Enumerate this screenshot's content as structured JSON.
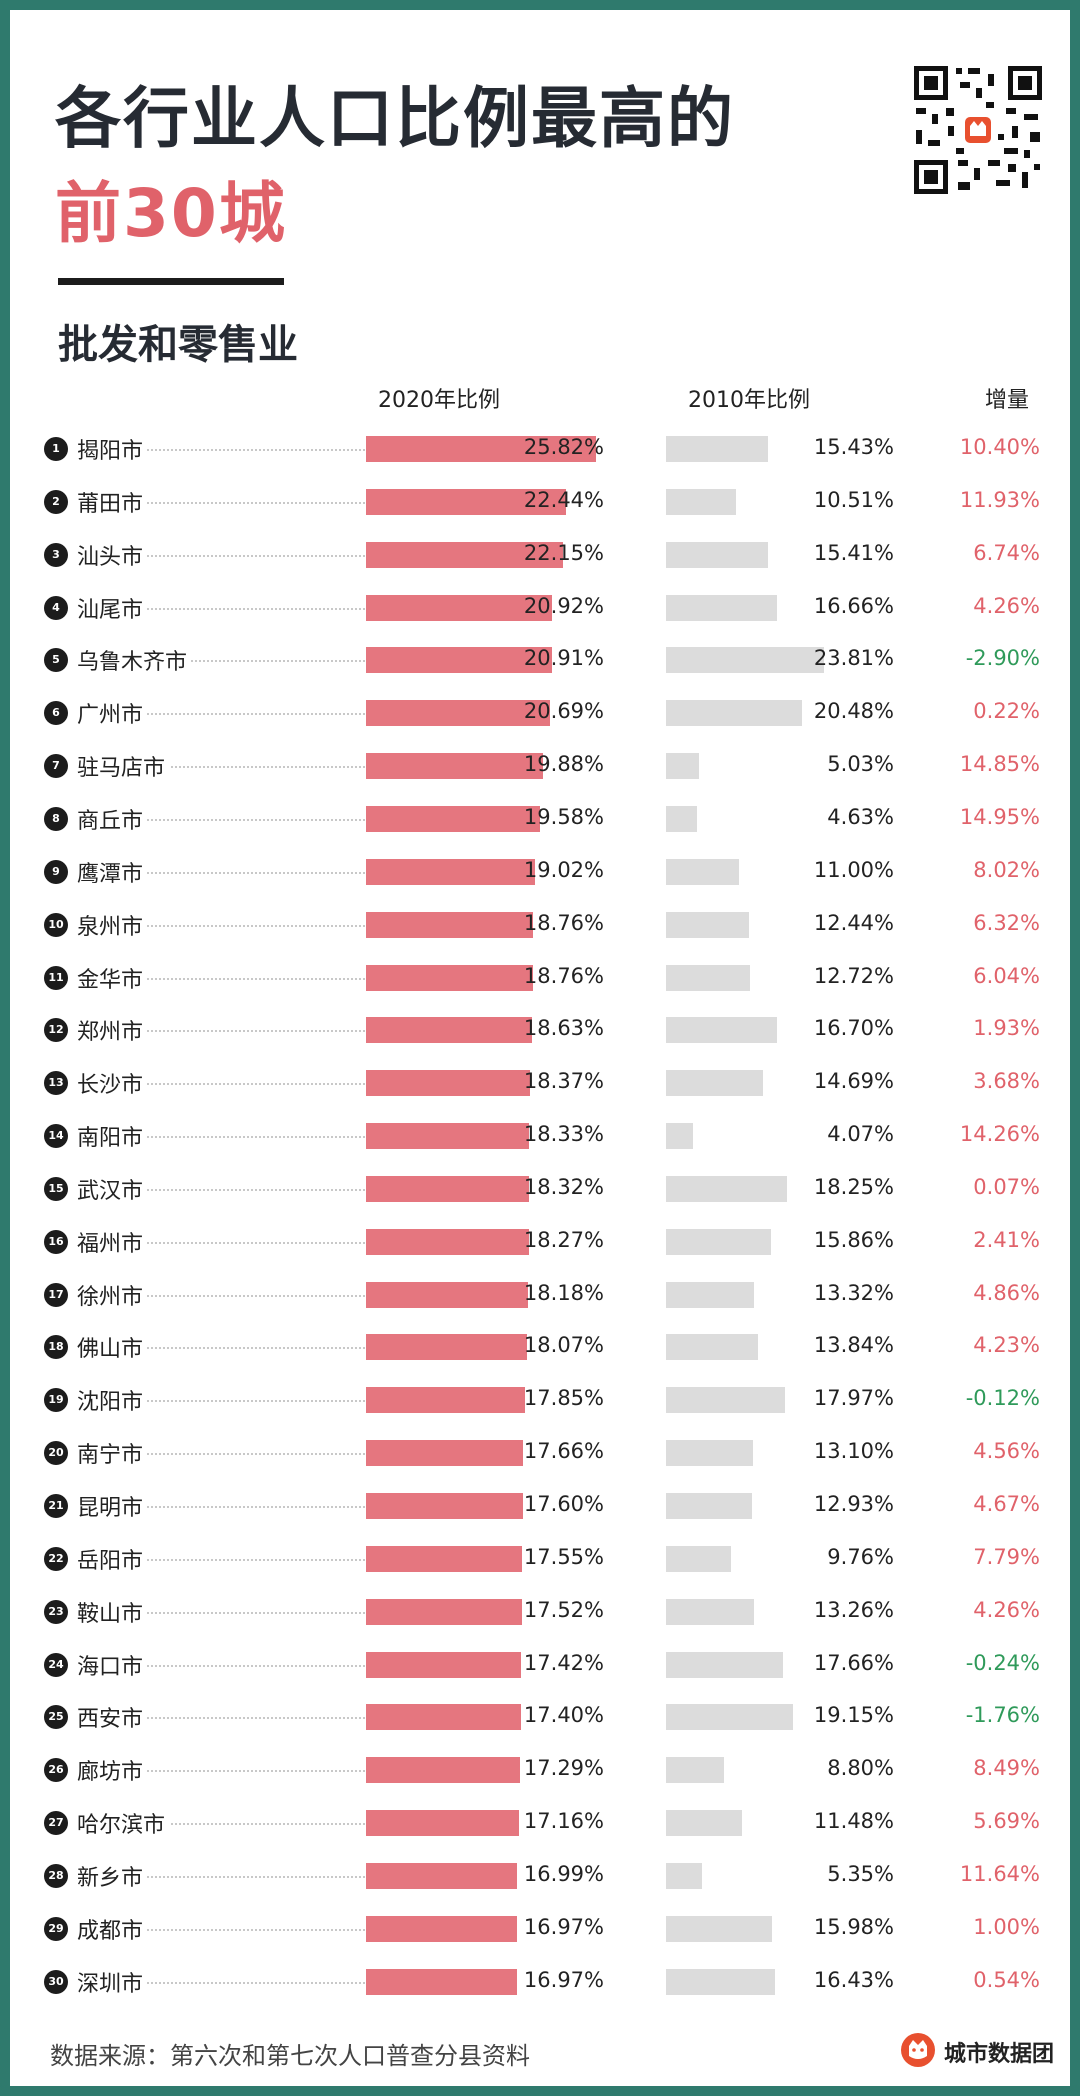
{
  "title_line1": "各行业人口比例最高的",
  "title_line2": "前30城",
  "subtitle": "批发和零售业",
  "chart_data": {
    "type": "bar",
    "title": "各行业人口比例最高的前30城 - 批发和零售业",
    "columns": {
      "pct2020": "2020年比例",
      "pct2010": "2010年比例",
      "increase": "增量"
    },
    "xlim_2020": [
      0,
      25.82
    ],
    "xlim_2010": [
      0,
      23.81
    ],
    "rows": [
      {
        "rank": "1",
        "city": "揭阳市",
        "v2020": 25.82,
        "v2010": 15.43,
        "inc": 10.4,
        "v2020_label": "25.82%",
        "v2010_label": "15.43%",
        "inc_label": "10.40%"
      },
      {
        "rank": "2",
        "city": "莆田市",
        "v2020": 22.44,
        "v2010": 10.51,
        "inc": 11.93,
        "v2020_label": "22.44%",
        "v2010_label": "10.51%",
        "inc_label": "11.93%"
      },
      {
        "rank": "3",
        "city": "汕头市",
        "v2020": 22.15,
        "v2010": 15.41,
        "inc": 6.74,
        "v2020_label": "22.15%",
        "v2010_label": "15.41%",
        "inc_label": "6.74%"
      },
      {
        "rank": "4",
        "city": "汕尾市",
        "v2020": 20.92,
        "v2010": 16.66,
        "inc": 4.26,
        "v2020_label": "20.92%",
        "v2010_label": "16.66%",
        "inc_label": "4.26%"
      },
      {
        "rank": "5",
        "city": "乌鲁木齐市",
        "v2020": 20.91,
        "v2010": 23.81,
        "inc": -2.9,
        "v2020_label": "20.91%",
        "v2010_label": "23.81%",
        "inc_label": "-2.90%"
      },
      {
        "rank": "6",
        "city": "广州市",
        "v2020": 20.69,
        "v2010": 20.48,
        "inc": 0.22,
        "v2020_label": "20.69%",
        "v2010_label": "20.48%",
        "inc_label": "0.22%"
      },
      {
        "rank": "7",
        "city": "驻马店市",
        "v2020": 19.88,
        "v2010": 5.03,
        "inc": 14.85,
        "v2020_label": "19.88%",
        "v2010_label": "5.03%",
        "inc_label": "14.85%"
      },
      {
        "rank": "8",
        "city": "商丘市",
        "v2020": 19.58,
        "v2010": 4.63,
        "inc": 14.95,
        "v2020_label": "19.58%",
        "v2010_label": "4.63%",
        "inc_label": "14.95%"
      },
      {
        "rank": "9",
        "city": "鹰潭市",
        "v2020": 19.02,
        "v2010": 11.0,
        "inc": 8.02,
        "v2020_label": "19.02%",
        "v2010_label": "11.00%",
        "inc_label": "8.02%"
      },
      {
        "rank": "10",
        "city": "泉州市",
        "v2020": 18.76,
        "v2010": 12.44,
        "inc": 6.32,
        "v2020_label": "18.76%",
        "v2010_label": "12.44%",
        "inc_label": "6.32%"
      },
      {
        "rank": "11",
        "city": "金华市",
        "v2020": 18.76,
        "v2010": 12.72,
        "inc": 6.04,
        "v2020_label": "18.76%",
        "v2010_label": "12.72%",
        "inc_label": "6.04%"
      },
      {
        "rank": "12",
        "city": "郑州市",
        "v2020": 18.63,
        "v2010": 16.7,
        "inc": 1.93,
        "v2020_label": "18.63%",
        "v2010_label": "16.70%",
        "inc_label": "1.93%"
      },
      {
        "rank": "13",
        "city": "长沙市",
        "v2020": 18.37,
        "v2010": 14.69,
        "inc": 3.68,
        "v2020_label": "18.37%",
        "v2010_label": "14.69%",
        "inc_label": "3.68%"
      },
      {
        "rank": "14",
        "city": "南阳市",
        "v2020": 18.33,
        "v2010": 4.07,
        "inc": 14.26,
        "v2020_label": "18.33%",
        "v2010_label": "4.07%",
        "inc_label": "14.26%"
      },
      {
        "rank": "15",
        "city": "武汉市",
        "v2020": 18.32,
        "v2010": 18.25,
        "inc": 0.07,
        "v2020_label": "18.32%",
        "v2010_label": "18.25%",
        "inc_label": "0.07%"
      },
      {
        "rank": "16",
        "city": "福州市",
        "v2020": 18.27,
        "v2010": 15.86,
        "inc": 2.41,
        "v2020_label": "18.27%",
        "v2010_label": "15.86%",
        "inc_label": "2.41%"
      },
      {
        "rank": "17",
        "city": "徐州市",
        "v2020": 18.18,
        "v2010": 13.32,
        "inc": 4.86,
        "v2020_label": "18.18%",
        "v2010_label": "13.32%",
        "inc_label": "4.86%"
      },
      {
        "rank": "18",
        "city": "佛山市",
        "v2020": 18.07,
        "v2010": 13.84,
        "inc": 4.23,
        "v2020_label": "18.07%",
        "v2010_label": "13.84%",
        "inc_label": "4.23%"
      },
      {
        "rank": "19",
        "city": "沈阳市",
        "v2020": 17.85,
        "v2010": 17.97,
        "inc": -0.12,
        "v2020_label": "17.85%",
        "v2010_label": "17.97%",
        "inc_label": "-0.12%"
      },
      {
        "rank": "20",
        "city": "南宁市",
        "v2020": 17.66,
        "v2010": 13.1,
        "inc": 4.56,
        "v2020_label": "17.66%",
        "v2010_label": "13.10%",
        "inc_label": "4.56%"
      },
      {
        "rank": "21",
        "city": "昆明市",
        "v2020": 17.6,
        "v2010": 12.93,
        "inc": 4.67,
        "v2020_label": "17.60%",
        "v2010_label": "12.93%",
        "inc_label": "4.67%"
      },
      {
        "rank": "22",
        "city": "岳阳市",
        "v2020": 17.55,
        "v2010": 9.76,
        "inc": 7.79,
        "v2020_label": "17.55%",
        "v2010_label": "9.76%",
        "inc_label": "7.79%"
      },
      {
        "rank": "23",
        "city": "鞍山市",
        "v2020": 17.52,
        "v2010": 13.26,
        "inc": 4.26,
        "v2020_label": "17.52%",
        "v2010_label": "13.26%",
        "inc_label": "4.26%"
      },
      {
        "rank": "24",
        "city": "海口市",
        "v2020": 17.42,
        "v2010": 17.66,
        "inc": -0.24,
        "v2020_label": "17.42%",
        "v2010_label": "17.66%",
        "inc_label": "-0.24%"
      },
      {
        "rank": "25",
        "city": "西安市",
        "v2020": 17.4,
        "v2010": 19.15,
        "inc": -1.76,
        "v2020_label": "17.40%",
        "v2010_label": "19.15%",
        "inc_label": "-1.76%"
      },
      {
        "rank": "26",
        "city": "廊坊市",
        "v2020": 17.29,
        "v2010": 8.8,
        "inc": 8.49,
        "v2020_label": "17.29%",
        "v2010_label": "8.80%",
        "inc_label": "8.49%"
      },
      {
        "rank": "27",
        "city": "哈尔滨市",
        "v2020": 17.16,
        "v2010": 11.48,
        "inc": 5.69,
        "v2020_label": "17.16%",
        "v2010_label": "11.48%",
        "inc_label": "5.69%"
      },
      {
        "rank": "28",
        "city": "新乡市",
        "v2020": 16.99,
        "v2010": 5.35,
        "inc": 11.64,
        "v2020_label": "16.99%",
        "v2010_label": "5.35%",
        "inc_label": "11.64%"
      },
      {
        "rank": "29",
        "city": "成都市",
        "v2020": 16.97,
        "v2010": 15.98,
        "inc": 1.0,
        "v2020_label": "16.97%",
        "v2010_label": "15.98%",
        "inc_label": "1.00%"
      },
      {
        "rank": "30",
        "city": "深圳市",
        "v2020": 16.97,
        "v2010": 16.43,
        "inc": 0.54,
        "v2020_label": "16.97%",
        "v2010_label": "16.43%",
        "inc_label": "0.54%"
      }
    ]
  },
  "footer_source": "数据来源：第六次和第七次人口普查分县资料",
  "brand": "城市数据团",
  "colors": {
    "bar_2020": "#e5767f",
    "bar_2010": "#dcdcdc",
    "increase_positive": "#e0626a",
    "increase_negative": "#2f9a5a",
    "accent_title": "#e0626a",
    "frame": "#2f7a6d"
  },
  "icons": {
    "qr": "qr-code-icon",
    "logo": "cat-logo-icon"
  }
}
